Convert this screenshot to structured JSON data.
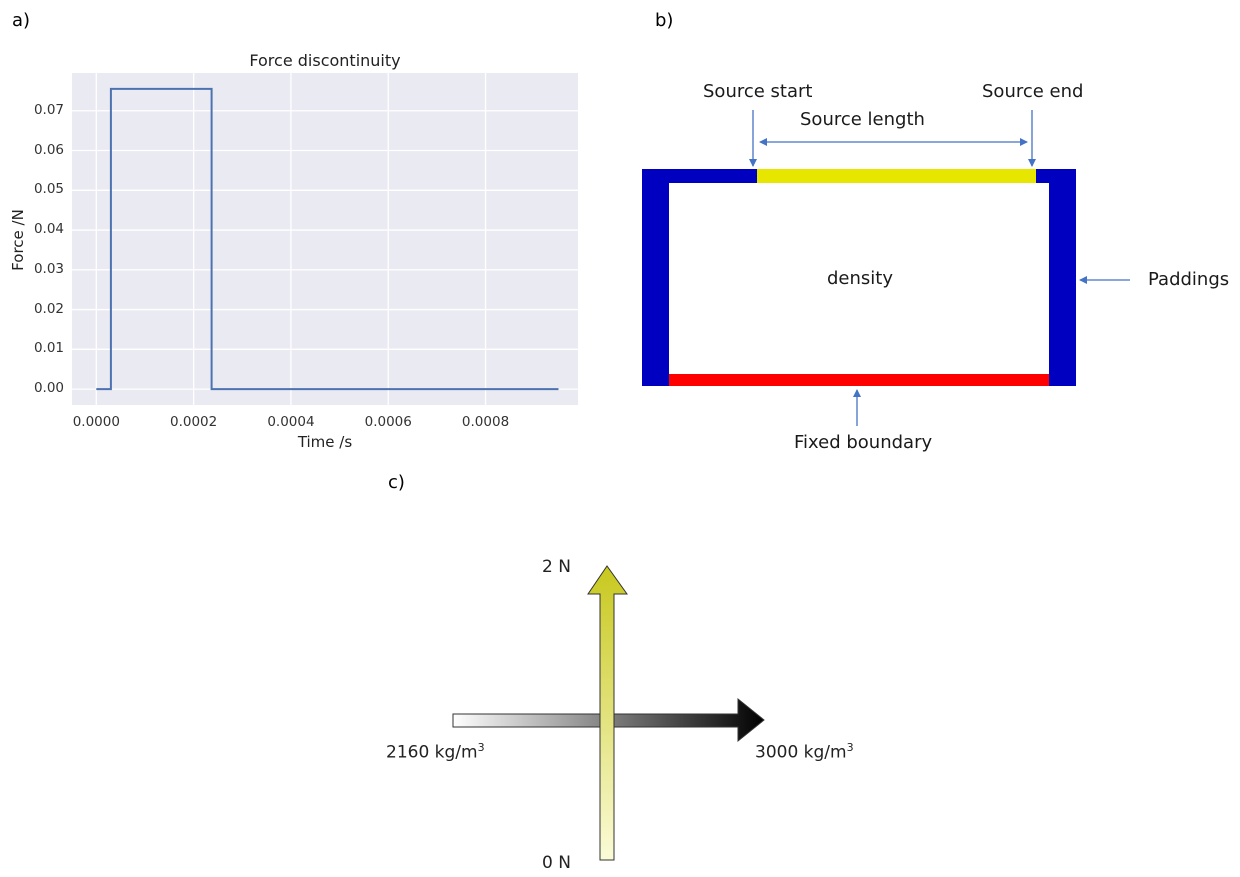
{
  "panels": {
    "a": {
      "label": "a)"
    },
    "b": {
      "label": "b)"
    },
    "c": {
      "label": "c)"
    }
  },
  "chart_data": {
    "type": "line",
    "title": "Force discontinuity",
    "xlabel": "Time /s",
    "ylabel": "Force /N",
    "xlim": [
      -5e-05,
      0.00099
    ],
    "ylim": [
      -0.004,
      0.0795
    ],
    "xticks": [
      0.0,
      0.0002,
      0.0004,
      0.0006,
      0.0008
    ],
    "xtick_labels": [
      "0.0000",
      "0.0002",
      "0.0004",
      "0.0006",
      "0.0008"
    ],
    "yticks": [
      0.0,
      0.01,
      0.02,
      0.03,
      0.04,
      0.05,
      0.06,
      0.07
    ],
    "ytick_labels": [
      "0.00",
      "0.01",
      "0.02",
      "0.03",
      "0.04",
      "0.05",
      "0.06",
      "0.07"
    ],
    "grid": true,
    "series": [
      {
        "x": [
          0.0,
          3e-05,
          3e-05,
          0.000237,
          0.000237,
          0.00095
        ],
        "y": [
          0.0,
          0.0,
          0.0755,
          0.0755,
          0.0,
          0.0
        ],
        "color": "#4c72b0"
      }
    ]
  },
  "diagram_b": {
    "source_start": "Source start",
    "source_end": "Source end",
    "source_length": "Source length",
    "density": "density",
    "paddings": "Paddings",
    "fixed_boundary": "Fixed boundary",
    "colors": {
      "padding": "#0000c0",
      "source": "#e6e600",
      "fixed": "#ff0000",
      "arrow": "#4472c4"
    }
  },
  "diagram_c": {
    "force_max": "2 N",
    "force_min": "0 N",
    "density_min": "2160 kg/m",
    "density_max": "3000 kg/m",
    "density_exp": "3"
  }
}
